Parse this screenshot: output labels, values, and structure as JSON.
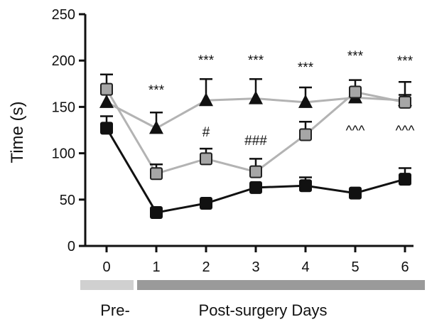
{
  "chart_data": {
    "type": "line",
    "ylabel": "Time (s)",
    "ylim": [
      0,
      250
    ],
    "yticks": [
      0,
      50,
      100,
      150,
      200,
      250
    ],
    "x": [
      0,
      1,
      2,
      3,
      4,
      5,
      6
    ],
    "xticks": [
      "0",
      "1",
      "2",
      "3",
      "4",
      "5",
      "6"
    ],
    "grid": false,
    "series": [
      {
        "marker": "triangle",
        "color": "#111111",
        "line_color": "#b3b3b3",
        "values": [
          155,
          127,
          157,
          159,
          155,
          160,
          157
        ],
        "errors": [
          10,
          17,
          23,
          21,
          16,
          10,
          6
        ]
      },
      {
        "marker": "square",
        "color": "#a6a6a6",
        "line_color": "#b3b3b3",
        "values": [
          169,
          78,
          94,
          80,
          120,
          166,
          155
        ],
        "errors": [
          16,
          10,
          11,
          14,
          14,
          13,
          22
        ]
      },
      {
        "marker": "square",
        "color": "#111111",
        "line_color": "#111111",
        "values": [
          127,
          36,
          46,
          63,
          65,
          57,
          72
        ],
        "errors": [
          13,
          0,
          0,
          0,
          9,
          0,
          12
        ]
      }
    ],
    "annotations": {
      "top": [
        {
          "x": 1,
          "text": "***"
        },
        {
          "x": 2,
          "text": "***"
        },
        {
          "x": 3,
          "text": "***"
        },
        {
          "x": 4,
          "text": "***"
        },
        {
          "x": 5,
          "text": "***"
        },
        {
          "x": 6,
          "text": "***"
        }
      ],
      "middle": [
        {
          "x": 2,
          "text": "#"
        },
        {
          "x": 3,
          "text": "###"
        },
        {
          "x": 5,
          "text": "^^^"
        },
        {
          "x": 6,
          "text": "^^^"
        }
      ]
    },
    "periods": [
      {
        "label": "Pre-",
        "from": 0,
        "to": 0,
        "color": "#d0d0d0"
      },
      {
        "label": "Post-surgery Days",
        "from": 1,
        "to": 6,
        "color": "#9a9a9a"
      }
    ]
  }
}
